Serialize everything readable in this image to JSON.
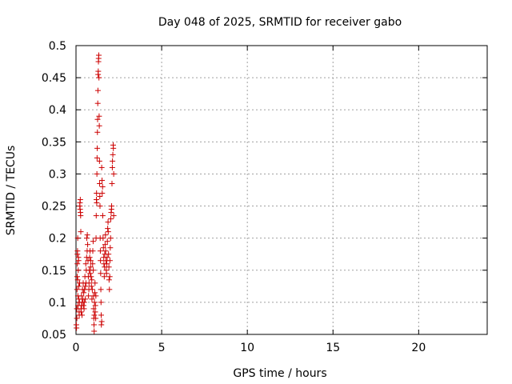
{
  "chart_data": {
    "type": "scatter",
    "title": "Day 048 of 2025, SRMTID for receiver gabo",
    "xlabel": "GPS time / hours",
    "ylabel": "SRMTID / TECUs",
    "xlim": [
      0,
      24
    ],
    "ylim": [
      0.05,
      0.5
    ],
    "xticks": [
      0,
      5,
      10,
      15,
      20
    ],
    "yticks": [
      0.05,
      0.1,
      0.15,
      0.2,
      0.25,
      0.3,
      0.35,
      0.4,
      0.45,
      0.5
    ],
    "grid": true,
    "marker": "+",
    "color": "#cc0000",
    "series": [
      {
        "name": "SRMTID",
        "points": [
          [
            0.02,
            0.065
          ],
          [
            0.03,
            0.06
          ],
          [
            0.05,
            0.075
          ],
          [
            0.05,
            0.09
          ],
          [
            0.06,
            0.12
          ],
          [
            0.07,
            0.14
          ],
          [
            0.08,
            0.16
          ],
          [
            0.08,
            0.175
          ],
          [
            0.09,
            0.18
          ],
          [
            0.1,
            0.2
          ],
          [
            0.1,
            0.135
          ],
          [
            0.11,
            0.11
          ],
          [
            0.12,
            0.095
          ],
          [
            0.13,
            0.15
          ],
          [
            0.14,
            0.17
          ],
          [
            0.15,
            0.165
          ],
          [
            0.16,
            0.125
          ],
          [
            0.17,
            0.105
          ],
          [
            0.18,
            0.085
          ],
          [
            0.19,
            0.08
          ],
          [
            0.2,
            0.1
          ],
          [
            0.21,
            0.13
          ],
          [
            0.22,
            0.25
          ],
          [
            0.23,
            0.255
          ],
          [
            0.24,
            0.245
          ],
          [
            0.25,
            0.26
          ],
          [
            0.26,
            0.24
          ],
          [
            0.27,
            0.235
          ],
          [
            0.28,
            0.21
          ],
          [
            0.29,
            0.09
          ],
          [
            0.3,
            0.085
          ],
          [
            0.32,
            0.11
          ],
          [
            0.33,
            0.095
          ],
          [
            0.35,
            0.08
          ],
          [
            0.36,
            0.1
          ],
          [
            0.38,
            0.12
          ],
          [
            0.4,
            0.105
          ],
          [
            0.42,
            0.13
          ],
          [
            0.44,
            0.095
          ],
          [
            0.45,
            0.115
          ],
          [
            0.47,
            0.09
          ],
          [
            0.48,
            0.1
          ],
          [
            0.5,
            0.12
          ],
          [
            0.52,
            0.14
          ],
          [
            0.54,
            0.105
          ],
          [
            0.55,
            0.125
          ],
          [
            0.57,
            0.16
          ],
          [
            0.58,
            0.13
          ],
          [
            0.6,
            0.15
          ],
          [
            0.62,
            0.17
          ],
          [
            0.63,
            0.2
          ],
          [
            0.65,
            0.18
          ],
          [
            0.66,
            0.205
          ],
          [
            0.68,
            0.19
          ],
          [
            0.7,
            0.165
          ],
          [
            0.72,
            0.14
          ],
          [
            0.73,
            0.11
          ],
          [
            0.75,
            0.12
          ],
          [
            0.76,
            0.13
          ],
          [
            0.78,
            0.15
          ],
          [
            0.8,
            0.17
          ],
          [
            0.82,
            0.18
          ],
          [
            0.83,
            0.145
          ],
          [
            0.85,
            0.155
          ],
          [
            0.86,
            0.165
          ],
          [
            0.88,
            0.14
          ],
          [
            0.9,
            0.125
          ],
          [
            0.92,
            0.135
          ],
          [
            0.93,
            0.105
          ],
          [
            0.95,
            0.12
          ],
          [
            0.97,
            0.16
          ],
          [
            0.98,
            0.18
          ],
          [
            1.0,
            0.195
          ],
          [
            1.01,
            0.15
          ],
          [
            1.02,
            0.11
          ],
          [
            1.03,
            0.09
          ],
          [
            1.04,
            0.075
          ],
          [
            1.05,
            0.065
          ],
          [
            1.06,
            0.055
          ],
          [
            1.07,
            0.08
          ],
          [
            1.08,
            0.1
          ],
          [
            1.1,
            0.115
          ],
          [
            1.11,
            0.13
          ],
          [
            1.12,
            0.085
          ],
          [
            1.13,
            0.095
          ],
          [
            1.15,
            0.075
          ],
          [
            1.16,
            0.11
          ],
          [
            1.17,
            0.2
          ],
          [
            1.18,
            0.235
          ],
          [
            1.19,
            0.26
          ],
          [
            1.2,
            0.27
          ],
          [
            1.21,
            0.255
          ],
          [
            1.22,
            0.3
          ],
          [
            1.23,
            0.325
          ],
          [
            1.24,
            0.34
          ],
          [
            1.25,
            0.365
          ],
          [
            1.26,
            0.385
          ],
          [
            1.27,
            0.41
          ],
          [
            1.28,
            0.43
          ],
          [
            1.29,
            0.455
          ],
          [
            1.3,
            0.46
          ],
          [
            1.31,
            0.475
          ],
          [
            1.32,
            0.48
          ],
          [
            1.33,
            0.485
          ],
          [
            1.34,
            0.45
          ],
          [
            1.35,
            0.39
          ],
          [
            1.36,
            0.375
          ],
          [
            1.37,
            0.32
          ],
          [
            1.38,
            0.285
          ],
          [
            1.39,
            0.265
          ],
          [
            1.4,
            0.25
          ],
          [
            1.41,
            0.2
          ],
          [
            1.42,
            0.18
          ],
          [
            1.43,
            0.165
          ],
          [
            1.44,
            0.145
          ],
          [
            1.45,
            0.12
          ],
          [
            1.46,
            0.1
          ],
          [
            1.47,
            0.08
          ],
          [
            1.48,
            0.065
          ],
          [
            1.5,
            0.07
          ],
          [
            1.5,
            0.31
          ],
          [
            1.52,
            0.29
          ],
          [
            1.53,
            0.27
          ],
          [
            1.55,
            0.28
          ],
          [
            1.56,
            0.235
          ],
          [
            1.58,
            0.2
          ],
          [
            1.6,
            0.185
          ],
          [
            1.62,
            0.17
          ],
          [
            1.63,
            0.16
          ],
          [
            1.65,
            0.14
          ],
          [
            1.67,
            0.155
          ],
          [
            1.68,
            0.175
          ],
          [
            1.7,
            0.19
          ],
          [
            1.72,
            0.205
          ],
          [
            1.73,
            0.18
          ],
          [
            1.75,
            0.165
          ],
          [
            1.77,
            0.15
          ],
          [
            1.78,
            0.145
          ],
          [
            1.8,
            0.16
          ],
          [
            1.82,
            0.17
          ],
          [
            1.83,
            0.195
          ],
          [
            1.85,
            0.215
          ],
          [
            1.87,
            0.225
          ],
          [
            1.88,
            0.21
          ],
          [
            1.9,
            0.175
          ],
          [
            1.92,
            0.155
          ],
          [
            1.93,
            0.135
          ],
          [
            1.95,
            0.12
          ],
          [
            1.97,
            0.14
          ],
          [
            1.98,
            0.165
          ],
          [
            2.0,
            0.185
          ],
          [
            2.02,
            0.2
          ],
          [
            2.03,
            0.23
          ],
          [
            2.05,
            0.24
          ],
          [
            2.07,
            0.245
          ],
          [
            2.08,
            0.25
          ],
          [
            2.1,
            0.285
          ],
          [
            2.12,
            0.31
          ],
          [
            2.13,
            0.32
          ],
          [
            2.15,
            0.33
          ],
          [
            2.17,
            0.345
          ],
          [
            2.18,
            0.34
          ],
          [
            2.2,
            0.3
          ],
          [
            2.2,
            0.235
          ]
        ]
      }
    ]
  }
}
